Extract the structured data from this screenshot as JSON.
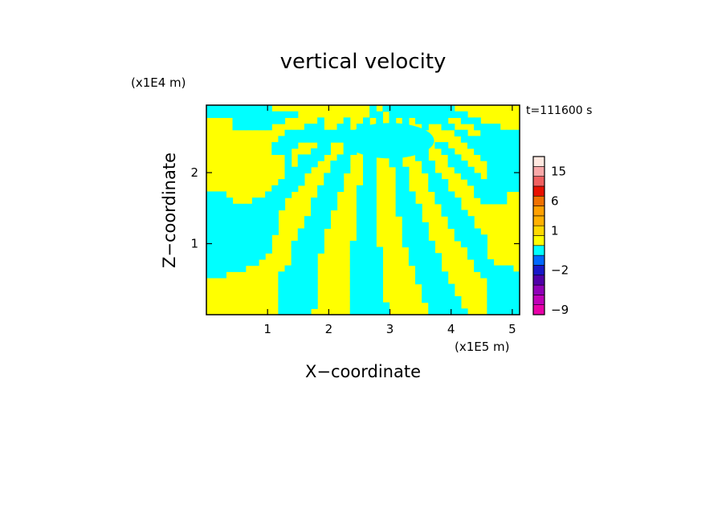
{
  "chart_data": {
    "type": "heatmap",
    "title": "vertical velocity",
    "xlabel": "X−coordinate",
    "ylabel": "Z−coordinate",
    "x_scale_label": "(x1E5 m)",
    "y_scale_label": "(x1E4 m)",
    "time_label": "t=111600 s",
    "xlim": [
      0,
      5.12
    ],
    "ylim": [
      0,
      2.95
    ],
    "x_ticks": [
      1,
      2,
      3,
      4,
      5
    ],
    "y_ticks": [
      1,
      2
    ],
    "x_tick_labels": [
      "1",
      "2",
      "3",
      "4",
      "5"
    ],
    "y_tick_labels": [
      "1",
      "2"
    ],
    "field_levels": [
      "positive",
      "negative"
    ],
    "field_colors": {
      "positive": "#ffff00",
      "negative": "#00ffff"
    },
    "colorbar": {
      "bands": [
        {
          "lo": -12,
          "hi": -9,
          "color": "#e800a8"
        },
        {
          "lo": -9,
          "hi": -6,
          "color": "#c000b8"
        },
        {
          "lo": -6,
          "hi": -4,
          "color": "#9000b8"
        },
        {
          "lo": -4,
          "hi": -3,
          "color": "#5000a8"
        },
        {
          "lo": -3,
          "hi": -2,
          "color": "#1818c8"
        },
        {
          "lo": -2,
          "hi": -1,
          "color": "#0068ff"
        },
        {
          "lo": -1,
          "hi": 0,
          "color": "#00ffff"
        },
        {
          "lo": 0,
          "hi": 0.5,
          "color": "#ffff00"
        },
        {
          "lo": 0.5,
          "hi": 1,
          "color": "#ffd800"
        },
        {
          "lo": 1,
          "hi": 2,
          "color": "#ffb000"
        },
        {
          "lo": 2,
          "hi": 4,
          "color": "#ffa000"
        },
        {
          "lo": 4,
          "hi": 6,
          "color": "#f07000"
        },
        {
          "lo": 6,
          "hi": 9,
          "color": "#e81000"
        },
        {
          "lo": 9,
          "hi": 12,
          "color": "#f06060"
        },
        {
          "lo": 12,
          "hi": 15,
          "color": "#f8a8a8"
        },
        {
          "lo": 15,
          "hi": 20,
          "color": "#ffe8e0"
        }
      ],
      "tick_labels": [
        {
          "value": 15,
          "label": "15"
        },
        {
          "value": 6,
          "label": "6"
        },
        {
          "value": 1,
          "label": "1"
        },
        {
          "value": -2,
          "label": "−2"
        },
        {
          "value": -9,
          "label": "−9"
        }
      ]
    }
  }
}
